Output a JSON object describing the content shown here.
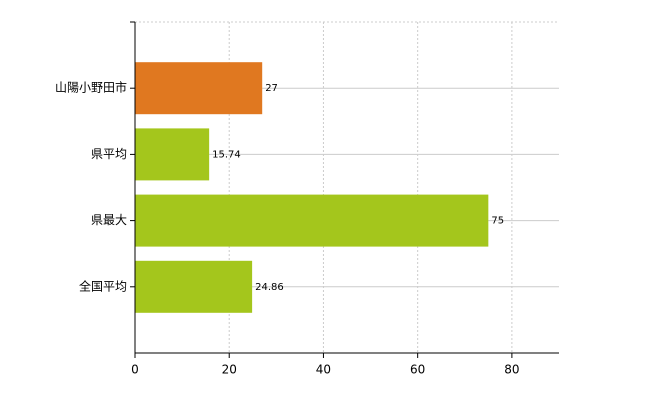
{
  "chart_data": {
    "type": "bar",
    "orientation": "horizontal",
    "categories": [
      "山陽小野田市",
      "県平均",
      "県最大",
      "全国平均"
    ],
    "values": [
      27,
      15.74,
      75,
      24.86
    ],
    "colors": [
      "#e07820",
      "#a4c61c",
      "#a4c61c",
      "#a4c61c"
    ],
    "xlim": [
      0,
      90
    ],
    "xticks": [
      0,
      20,
      40,
      60,
      80
    ],
    "grid": true
  }
}
